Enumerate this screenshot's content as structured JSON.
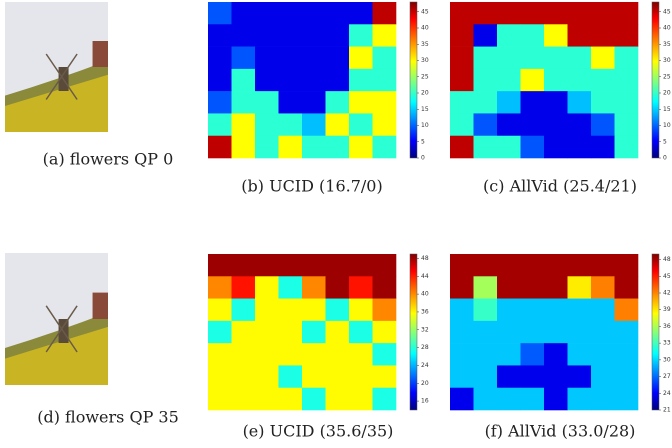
{
  "panels": [
    {
      "type": "photo",
      "caption": "(a) flowers QP 0"
    },
    {
      "type": "heatmap",
      "caption": "(b) UCID (16.7/0)",
      "colorbar": {
        "lim": [
          0,
          48
        ],
        "ticks": [
          0,
          5,
          10,
          15,
          20,
          25,
          30,
          35,
          40,
          45
        ]
      },
      "grid": [
        [
          10,
          5,
          5,
          5,
          5,
          5,
          5,
          45
        ],
        [
          5,
          5,
          5,
          5,
          5,
          5,
          20,
          30
        ],
        [
          5,
          10,
          5,
          5,
          5,
          5,
          30,
          20
        ],
        [
          5,
          20,
          5,
          5,
          5,
          5,
          20,
          20
        ],
        [
          10,
          20,
          20,
          5,
          5,
          20,
          30,
          30
        ],
        [
          20,
          30,
          20,
          20,
          15,
          30,
          20,
          30
        ],
        [
          45,
          30,
          20,
          30,
          20,
          20,
          30,
          20
        ]
      ]
    },
    {
      "type": "heatmap",
      "caption": "(c) AllVid (25.4/21)",
      "colorbar": {
        "lim": [
          0,
          48
        ],
        "ticks": [
          0,
          5,
          10,
          15,
          20,
          25,
          30,
          35,
          40,
          45
        ]
      },
      "grid": [
        [
          45,
          45,
          45,
          45,
          45,
          45,
          45,
          45
        ],
        [
          45,
          5,
          20,
          20,
          30,
          45,
          45,
          45
        ],
        [
          45,
          20,
          20,
          20,
          20,
          20,
          30,
          20
        ],
        [
          45,
          20,
          20,
          30,
          20,
          20,
          20,
          20
        ],
        [
          20,
          20,
          15,
          5,
          5,
          15,
          20,
          20
        ],
        [
          20,
          10,
          5,
          5,
          5,
          5,
          10,
          20
        ],
        [
          45,
          20,
          20,
          10,
          5,
          5,
          5,
          20
        ]
      ]
    },
    {
      "type": "photo",
      "caption": "(d) flowers QP 35"
    },
    {
      "type": "heatmap",
      "caption": "(e) UCID (35.6/35)",
      "colorbar": {
        "lim": [
          14,
          49
        ],
        "ticks": [
          16,
          20,
          24,
          28,
          32,
          36,
          40,
          44,
          48
        ]
      },
      "grid": [
        [
          48,
          48,
          48,
          48,
          48,
          48,
          48,
          48
        ],
        [
          40,
          44,
          36,
          28,
          40,
          48,
          44,
          48
        ],
        [
          36,
          28,
          36,
          36,
          36,
          28,
          36,
          40
        ],
        [
          28,
          36,
          36,
          36,
          28,
          36,
          28,
          36
        ],
        [
          36,
          36,
          36,
          36,
          36,
          36,
          36,
          28
        ],
        [
          36,
          36,
          36,
          28,
          36,
          36,
          36,
          36
        ],
        [
          36,
          36,
          36,
          36,
          28,
          36,
          36,
          28
        ]
      ]
    },
    {
      "type": "heatmap",
      "caption": "(f) AllVid (33.0/28)",
      "colorbar": {
        "lim": [
          21,
          49
        ],
        "ticks": [
          21,
          24,
          27,
          30,
          33,
          36,
          39,
          42,
          45,
          48
        ]
      },
      "grid": [
        [
          48,
          48,
          48,
          48,
          48,
          48,
          48,
          48
        ],
        [
          48,
          36,
          48,
          48,
          48,
          39,
          42,
          48
        ],
        [
          30,
          33,
          30,
          30,
          30,
          30,
          30,
          42
        ],
        [
          30,
          30,
          30,
          30,
          30,
          30,
          30,
          30
        ],
        [
          30,
          30,
          30,
          27,
          24,
          30,
          30,
          30
        ],
        [
          30,
          30,
          24,
          24,
          24,
          24,
          30,
          30
        ],
        [
          24,
          30,
          30,
          30,
          24,
          30,
          30,
          30
        ]
      ]
    }
  ]
}
